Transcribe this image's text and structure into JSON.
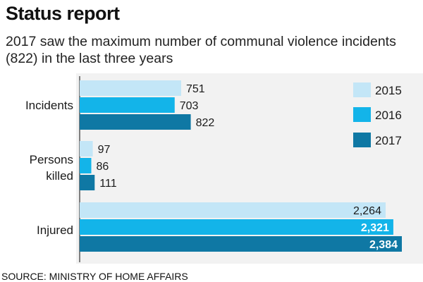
{
  "header": {
    "title": "Status report",
    "subtitle": "2017 saw the maximum number of communal violence incidents (822) in the last three years"
  },
  "source": "SOURCE: MINISTRY OF HOME AFFAIRS",
  "chart_data": {
    "type": "bar",
    "orientation": "horizontal",
    "title": "Status report",
    "subtitle": "2017 saw the maximum number of communal violence incidents (822) in the last three years",
    "categories": [
      "Incidents",
      "Persons killed",
      "Injured"
    ],
    "series": [
      {
        "name": "2015",
        "color": "#c3e6f7",
        "values": [
          751,
          97,
          2264
        ],
        "labels": [
          "751",
          "97",
          "2,264"
        ]
      },
      {
        "name": "2016",
        "color": "#13b4e9",
        "values": [
          703,
          86,
          2321
        ],
        "labels": [
          "703",
          "86",
          "2,321"
        ]
      },
      {
        "name": "2017",
        "color": "#0f78a4",
        "values": [
          822,
          111,
          2384
        ],
        "labels": [
          "822",
          "111",
          "2,384"
        ]
      }
    ],
    "legend_position": "right",
    "grid": false
  }
}
